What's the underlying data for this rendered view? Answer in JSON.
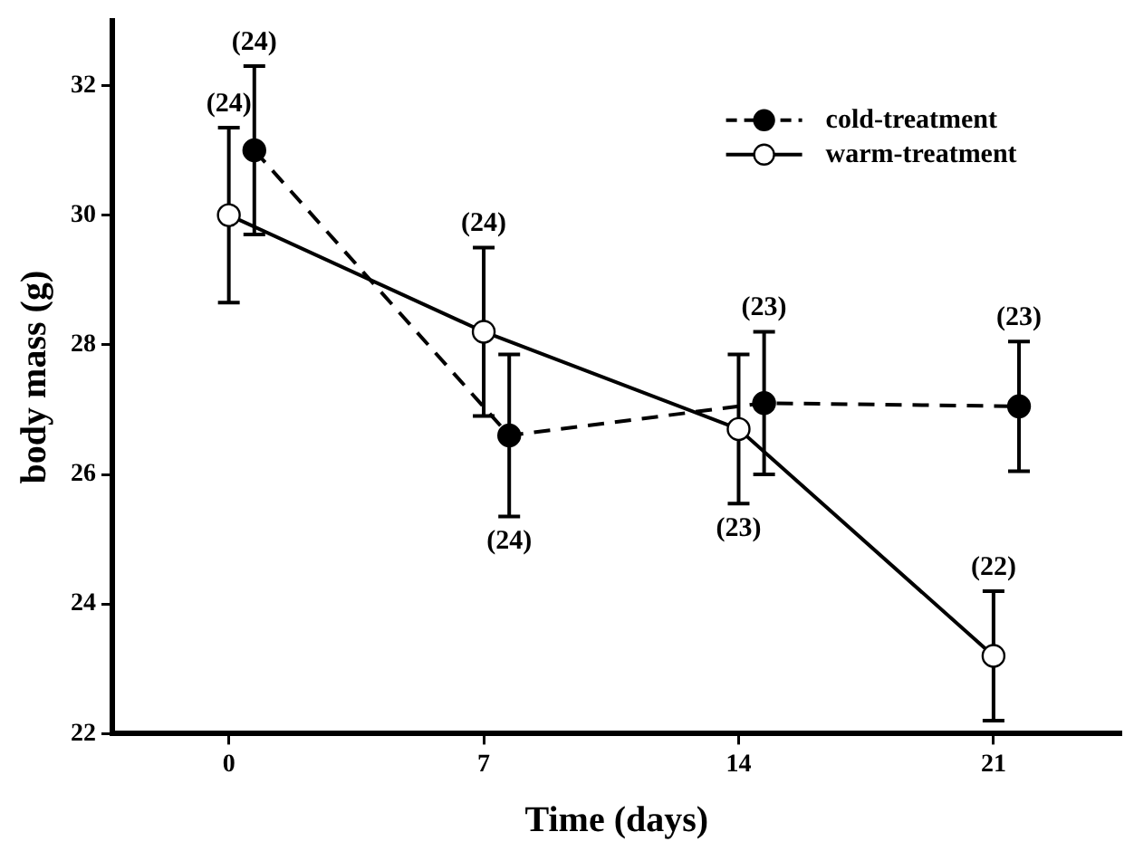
{
  "chart_data": {
    "type": "line",
    "xlabel": "Time (days)",
    "ylabel": "body mass (g)",
    "xlim": [
      -3.2,
      24.5
    ],
    "xticks": [
      0,
      7,
      14,
      21
    ],
    "ylim": [
      22,
      33
    ],
    "yticks": [
      22,
      24,
      26,
      28,
      30,
      32
    ],
    "series": [
      {
        "name": "cold-treatment",
        "color": "#000000",
        "line_style": "dashed",
        "marker": "circle",
        "x": [
          0.7,
          7.7,
          14.7,
          21.7
        ],
        "values": [
          31.0,
          26.6,
          27.1,
          27.05
        ],
        "errors": [
          1.3,
          1.25,
          1.1,
          1.0
        ]
      },
      {
        "name": "warm-treatment",
        "color": "#000000",
        "line_style": "solid",
        "marker": "circle",
        "x": [
          0,
          7,
          14,
          21
        ],
        "values": [
          30.0,
          28.2,
          26.7,
          23.2
        ],
        "errors": [
          1.35,
          1.3,
          1.15,
          1.0
        ]
      }
    ],
    "annotations": [
      {
        "text": "(24)",
        "x": 0.7,
        "y": 32.3
      },
      {
        "text": "(24)",
        "x": 0,
        "y": 31.35
      },
      {
        "text": "(24)",
        "x": 7,
        "y": 29.5
      },
      {
        "text": "(24)",
        "x": 7.7,
        "y": 25.35
      },
      {
        "text": "(23)",
        "x": 14,
        "y": 25.55
      },
      {
        "text": "(23)",
        "x": 14.7,
        "y": 28.2
      },
      {
        "text": "(23)",
        "x": 21.7,
        "y": 28.05
      },
      {
        "text": "(22)",
        "x": 21,
        "y": 24.2
      }
    ],
    "legend": "top right",
    "grid": false
  }
}
